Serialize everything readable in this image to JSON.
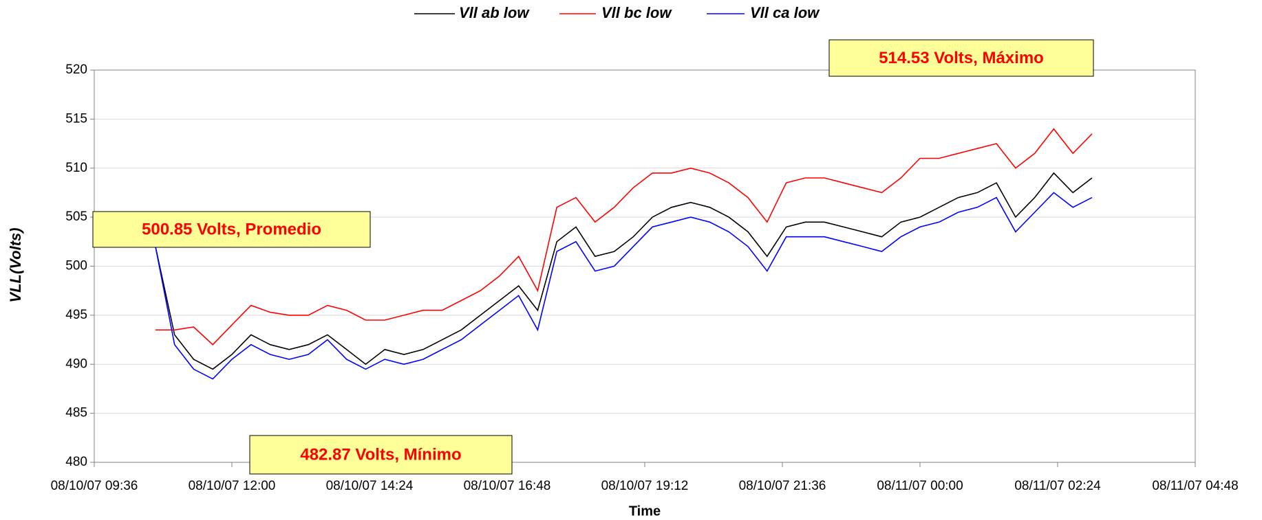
{
  "chart_data": {
    "type": "line",
    "y_label": "VLL(Volts)",
    "x_label": "Time",
    "xlim": [
      "08/10/07 09:36",
      "08/11/07 04:48"
    ],
    "xticks": [
      "08/10/07 09:36",
      "08/10/07 12:00",
      "08/10/07 14:24",
      "08/10/07 16:48",
      "08/10/07 19:12",
      "08/10/07 21:36",
      "08/11/07 00:00",
      "08/11/07 02:24",
      "08/11/07 04:48"
    ],
    "ylim": [
      480,
      520
    ],
    "yticks": [
      480,
      485,
      490,
      495,
      500,
      505,
      510,
      515,
      520
    ],
    "grid": true,
    "annotations": [
      "500.85 Volts, Promedio",
      "482.87 Volts, Mínimo",
      "514.53 Volts, Máximo"
    ],
    "x": [
      "08/10/07 10:40",
      "08/10/07 11:00",
      "08/10/07 11:20",
      "08/10/07 11:40",
      "08/10/07 12:00",
      "08/10/07 12:20",
      "08/10/07 12:40",
      "08/10/07 13:00",
      "08/10/07 13:20",
      "08/10/07 13:40",
      "08/10/07 14:00",
      "08/10/07 14:20",
      "08/10/07 14:40",
      "08/10/07 15:00",
      "08/10/07 15:20",
      "08/10/07 15:40",
      "08/10/07 16:00",
      "08/10/07 16:20",
      "08/10/07 16:40",
      "08/10/07 17:00",
      "08/10/07 17:20",
      "08/10/07 17:40",
      "08/10/07 18:00",
      "08/10/07 18:20",
      "08/10/07 18:40",
      "08/10/07 19:00",
      "08/10/07 19:20",
      "08/10/07 19:40",
      "08/10/07 20:00",
      "08/10/07 20:20",
      "08/10/07 20:40",
      "08/10/07 21:00",
      "08/10/07 21:20",
      "08/10/07 21:40",
      "08/10/07 22:00",
      "08/10/07 22:20",
      "08/10/07 22:40",
      "08/10/07 23:00",
      "08/10/07 23:20",
      "08/10/07 23:40",
      "08/11/07 00:00",
      "08/11/07 00:20",
      "08/11/07 00:40",
      "08/11/07 01:00",
      "08/11/07 01:20",
      "08/11/07 01:40",
      "08/11/07 02:00",
      "08/11/07 02:20",
      "08/11/07 02:40",
      "08/11/07 03:00"
    ],
    "series": [
      {
        "name": "Vll ab low",
        "color": "#000000",
        "values": [
          502,
          493,
          490.5,
          489.5,
          491,
          493,
          492,
          491.5,
          492,
          493,
          491.5,
          490,
          491.5,
          491,
          491.5,
          492.5,
          493.5,
          495,
          496.5,
          498,
          495.5,
          502.5,
          504,
          501,
          501.5,
          503,
          505,
          506,
          506.5,
          506,
          505,
          503.5,
          501,
          504,
          504.5,
          504.5,
          504,
          503.5,
          503,
          504.5,
          505,
          506,
          507,
          507.5,
          508.5,
          505,
          507,
          509.5,
          507.5,
          509
        ]
      },
      {
        "name": "Vll bc low",
        "color": "#ff0000",
        "values": [
          493.5,
          493.5,
          493.8,
          492,
          494,
          496,
          495.3,
          495,
          495,
          496,
          495.5,
          494.5,
          494.5,
          495,
          495.5,
          495.5,
          496.5,
          497.5,
          499,
          501,
          497.5,
          506,
          507,
          504.5,
          506,
          508,
          509.5,
          509.5,
          510,
          509.5,
          508.5,
          507,
          504.5,
          508.5,
          509,
          509,
          508.5,
          508,
          507.5,
          509,
          511,
          511,
          511.5,
          512,
          512.5,
          510,
          511.5,
          514,
          511.5,
          513.5
        ]
      },
      {
        "name": "Vll ca low",
        "color": "#0000ff",
        "values": [
          502,
          492,
          489.5,
          488.5,
          490.5,
          492,
          491,
          490.5,
          491,
          492.5,
          490.5,
          489.5,
          490.5,
          490,
          490.5,
          491.5,
          492.5,
          494,
          495.5,
          497,
          493.5,
          501.5,
          502.5,
          499.5,
          500,
          502,
          504,
          504.5,
          505,
          504.5,
          503.5,
          502,
          499.5,
          503,
          503,
          503,
          502.5,
          502,
          501.5,
          503,
          504,
          504.5,
          505.5,
          506,
          507,
          503.5,
          505.5,
          507.5,
          506,
          507
        ]
      }
    ]
  }
}
